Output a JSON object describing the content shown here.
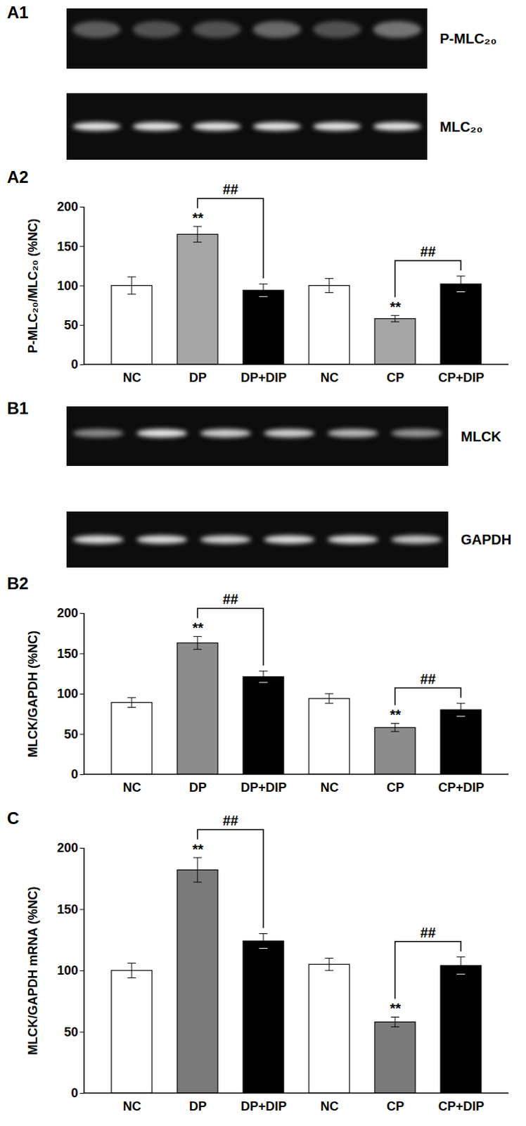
{
  "blots": [
    {
      "panel": "A1",
      "rows": [
        "P-MLC₂₀",
        "MLC₂₀"
      ]
    },
    {
      "panel": "B1",
      "rows": [
        "MLCK",
        "GAPDH"
      ]
    }
  ],
  "chart_data": [
    {
      "type": "bar",
      "panel": "A2",
      "y_label": "P-MLC₂₀/MLC₂₀ (%NC)",
      "categories": [
        "NC",
        "DP",
        "DP+DIP",
        "NC",
        "CP",
        "CP+DIP"
      ],
      "values": [
        100,
        165,
        94,
        100,
        58,
        102
      ],
      "errors": [
        11,
        10,
        8,
        9,
        4,
        10
      ],
      "colors": [
        "#ffffff",
        "#a6a6a6",
        "#000000",
        "#ffffff",
        "#a6a6a6",
        "#000000"
      ],
      "annotations": [
        null,
        "**",
        null,
        null,
        "**",
        null
      ],
      "comparisons": [
        {
          "from": 1,
          "to": 2,
          "label": "##"
        },
        {
          "from": 4,
          "to": 5,
          "label": "##"
        }
      ],
      "ylim": [
        0,
        200
      ],
      "yticks": [
        0,
        50,
        100,
        150,
        200
      ],
      "grid": false
    },
    {
      "type": "bar",
      "panel": "B2",
      "y_label": "MLCK/GAPDH (%NC)",
      "categories": [
        "NC",
        "DP",
        "DP+DIP",
        "NC",
        "CP",
        "CP+DIP"
      ],
      "values": [
        89,
        163,
        121,
        94,
        58,
        80
      ],
      "errors": [
        6,
        8,
        7,
        6,
        5,
        8
      ],
      "colors": [
        "#ffffff",
        "#8c8c8c",
        "#000000",
        "#ffffff",
        "#8c8c8c",
        "#000000"
      ],
      "annotations": [
        null,
        "**",
        null,
        null,
        "**",
        null
      ],
      "comparisons": [
        {
          "from": 1,
          "to": 2,
          "label": "##"
        },
        {
          "from": 4,
          "to": 5,
          "label": "##"
        }
      ],
      "ylim": [
        0,
        200
      ],
      "yticks": [
        0,
        50,
        100,
        150,
        200
      ],
      "grid": false
    },
    {
      "type": "bar",
      "panel": "C",
      "y_label": "MLCK/GAPDH mRNA (%NC)",
      "categories": [
        "NC",
        "DP",
        "DP+DIP",
        "NC",
        "CP",
        "CP+DIP"
      ],
      "values": [
        100,
        182,
        124,
        105,
        58,
        104
      ],
      "errors": [
        6,
        10,
        6,
        5,
        4,
        7
      ],
      "colors": [
        "#ffffff",
        "#7a7a7a",
        "#000000",
        "#ffffff",
        "#7a7a7a",
        "#000000"
      ],
      "annotations": [
        null,
        "**",
        null,
        null,
        "**",
        null
      ],
      "comparisons": [
        {
          "from": 1,
          "to": 2,
          "label": "##"
        },
        {
          "from": 4,
          "to": 5,
          "label": "##"
        }
      ],
      "ylim": [
        0,
        200
      ],
      "yticks": [
        0,
        50,
        100,
        150,
        200
      ],
      "grid": false
    }
  ]
}
